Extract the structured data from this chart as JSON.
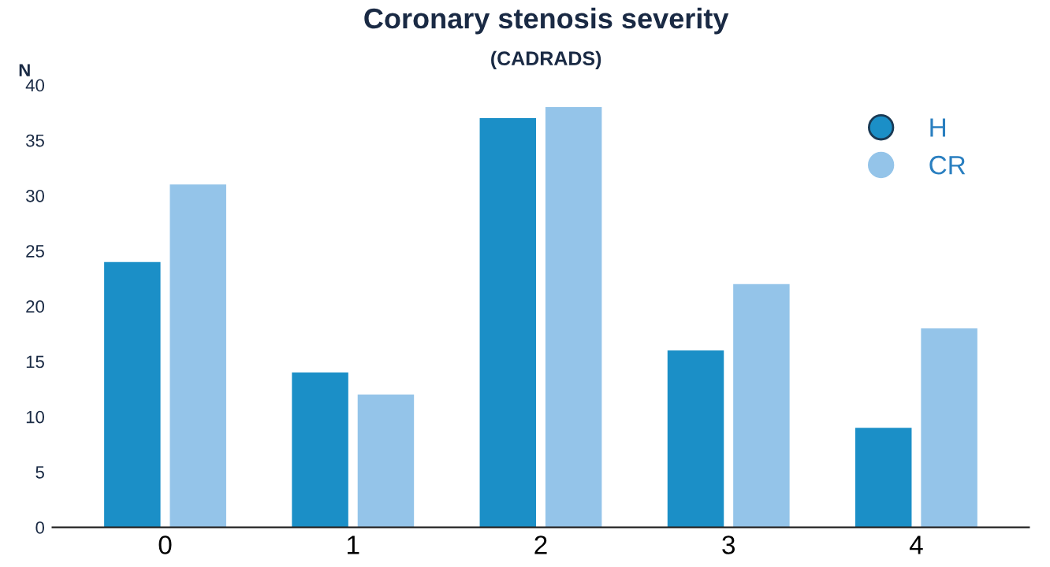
{
  "chart_data": {
    "type": "bar",
    "title": "Coronary stenosis severity",
    "subtitle": "(CADRADS)",
    "ylabel": "N",
    "categories": [
      "0",
      "1",
      "2",
      "3",
      "4"
    ],
    "series": [
      {
        "name": "H",
        "color": "#1b8fc7",
        "values": [
          24,
          14,
          37,
          16,
          9
        ]
      },
      {
        "name": "CR",
        "color": "#94c4e9",
        "values": [
          31,
          12,
          38,
          22,
          18
        ]
      }
    ],
    "ylim": [
      0,
      40
    ],
    "yticks": [
      0,
      5,
      10,
      15,
      20,
      25,
      30,
      35,
      40
    ],
    "grid": false,
    "legend": "top right"
  }
}
